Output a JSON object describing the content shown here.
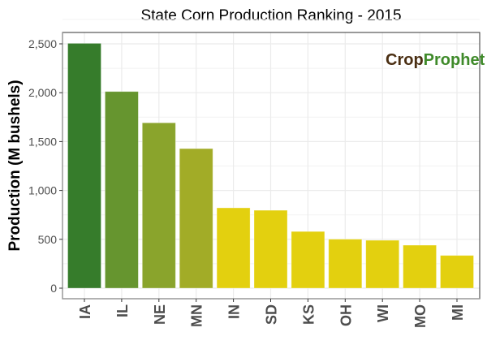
{
  "chart_data": {
    "type": "bar",
    "title": "State Corn Production Ranking - 2015",
    "xlabel": "",
    "ylabel": "Production (M bushels)",
    "categories": [
      "IA",
      "IL",
      "NE",
      "MN",
      "IN",
      "SD",
      "KS",
      "OH",
      "WI",
      "MO",
      "MI"
    ],
    "values": [
      2505,
      2012,
      1692,
      1428,
      822,
      797,
      580,
      501,
      490,
      440,
      335
    ],
    "colors": [
      "#367c2b",
      "#66952f",
      "#8aa42c",
      "#a2ac27",
      "#e3d00f",
      "#e3d00f",
      "#e3d00f",
      "#e3d00f",
      "#e3d00f",
      "#e3d00f",
      "#e3d00f"
    ],
    "ylim": [
      0,
      2500
    ],
    "yticks": [
      0,
      500,
      1000,
      1500,
      2000,
      2500
    ],
    "ytick_labels": [
      "0",
      "500",
      "1,000",
      "1,500",
      "2,000",
      "2,500"
    ],
    "grid": true,
    "legend": "none"
  },
  "logo": {
    "part1": "Crop",
    "part2": "Prophet",
    "color1": "#4a2e12",
    "color2": "#3f8a2a"
  }
}
